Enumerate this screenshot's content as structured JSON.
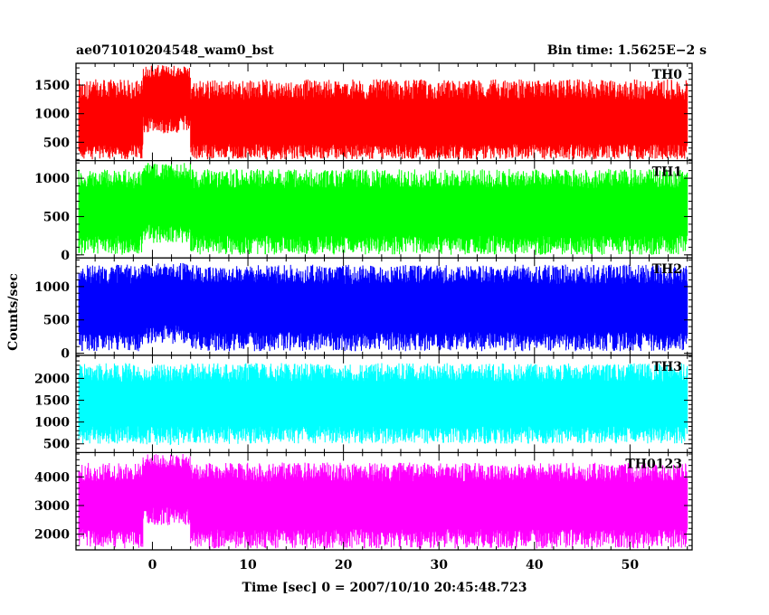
{
  "chart_data": {
    "type": "line",
    "title_left": "ae071010204548_wam0_bst",
    "title_right": "Bin time: 1.5625E−2 s",
    "xlabel": "Time [sec] 0 = 2007/10/10 20:45:48.723",
    "ylabel": "Counts/sec",
    "xlim": [
      -8,
      56.5
    ],
    "x_ticks": [
      0,
      10,
      20,
      30,
      40,
      50
    ],
    "x_minor_step": 2,
    "data_x_range": [
      -7.7,
      56.0
    ],
    "bin_time": 0.015625,
    "grid": false,
    "panels": [
      {
        "name": "TH0",
        "color": "#ff0000",
        "ylim": [
          180,
          1880
        ],
        "y_ticks": [
          500,
          1000,
          1500
        ],
        "y_minor_step": 100,
        "mean": 800,
        "spread_low": 600,
        "spread_high": 800,
        "burst_mean": 1350,
        "burst_spread_low": 700,
        "burst_spread_high": 500
      },
      {
        "name": "TH1",
        "color": "#00ff00",
        "ylim": [
          -40,
          1230
        ],
        "y_ticks": [
          0,
          500,
          1000
        ],
        "y_minor_step": 100,
        "mean": 560,
        "spread_low": 560,
        "spread_high": 560,
        "burst_mean": 700,
        "burst_spread_low": 550,
        "burst_spread_high": 500
      },
      {
        "name": "TH2",
        "color": "#0000ff",
        "ylim": [
          -30,
          1430
        ],
        "y_ticks": [
          0,
          500,
          1000
        ],
        "y_minor_step": 100,
        "mean": 680,
        "spread_low": 650,
        "spread_high": 650,
        "burst_mean": 760,
        "burst_spread_low": 620,
        "burst_spread_high": 600
      },
      {
        "name": "TH3",
        "color": "#00ffff",
        "ylim": [
          300,
          2530
        ],
        "y_ticks": [
          500,
          1000,
          1500,
          2000
        ],
        "y_minor_step": 100,
        "mean": 1400,
        "spread_low": 900,
        "spread_high": 950,
        "burst_mean": 1420,
        "burst_spread_low": 950,
        "burst_spread_high": 900
      },
      {
        "name": "TH0123",
        "color": "#ff00ff",
        "ylim": [
          1450,
          4850
        ],
        "y_ticks": [
          2000,
          3000,
          4000
        ],
        "y_minor_step": 200,
        "mean": 3000,
        "spread_low": 1500,
        "spread_high": 1500,
        "burst_mean": 3700,
        "burst_spread_low": 1400,
        "burst_spread_high": 1100
      }
    ],
    "burst_window": [
      -1,
      4
    ]
  }
}
